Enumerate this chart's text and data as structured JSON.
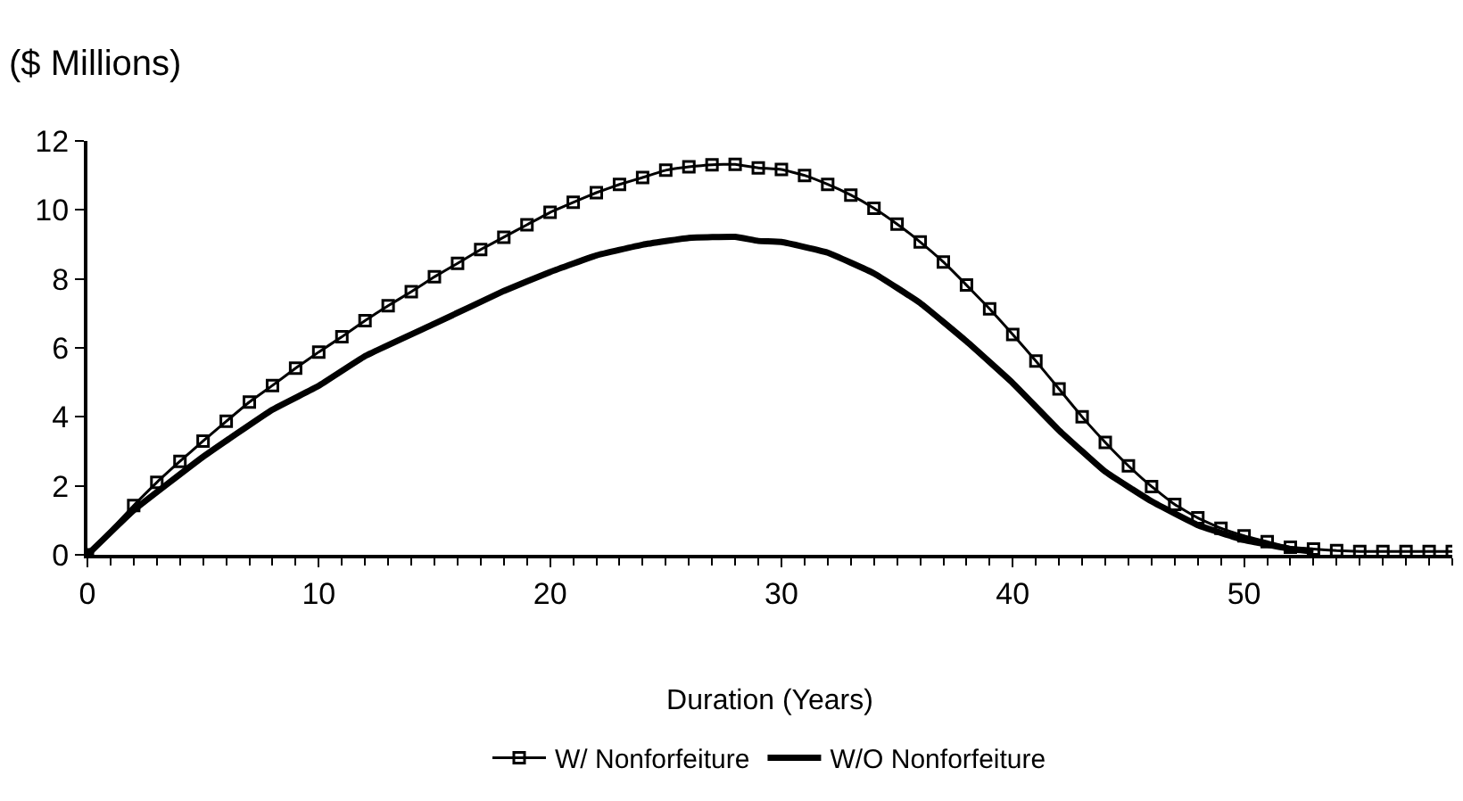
{
  "chart_data": {
    "type": "line",
    "ylabel": "($ Millions)",
    "xlabel": "Duration (Years)",
    "xlim": [
      0,
      59
    ],
    "xticks": [
      0,
      10,
      20,
      30,
      40,
      50
    ],
    "ylim": [
      0,
      12
    ],
    "yticks": [
      0,
      2,
      4,
      6,
      8,
      10,
      12
    ],
    "legend": "bottom",
    "series": [
      {
        "name": "W/ Nonforfeiture",
        "color": "#000000",
        "marker": "square",
        "x": [
          0,
          2,
          3,
          4,
          5,
          6,
          7,
          8,
          9,
          10,
          11,
          12,
          13,
          14,
          15,
          16,
          17,
          18,
          19,
          20,
          21,
          22,
          23,
          24,
          25,
          26,
          27,
          28,
          29,
          30,
          31,
          32,
          33,
          34,
          35,
          36,
          37,
          38,
          39,
          40,
          41,
          42,
          43,
          44,
          45,
          46,
          47,
          48,
          49,
          50,
          51,
          52,
          53,
          54,
          55,
          56,
          57,
          58,
          59
        ],
        "values": [
          0,
          1.43,
          2.1,
          2.71,
          3.3,
          3.87,
          4.43,
          4.91,
          5.41,
          5.88,
          6.32,
          6.79,
          7.22,
          7.63,
          8.06,
          8.45,
          8.85,
          9.21,
          9.57,
          9.93,
          10.22,
          10.5,
          10.74,
          10.94,
          11.15,
          11.25,
          11.31,
          11.32,
          11.22,
          11.17,
          11.0,
          10.74,
          10.43,
          10.05,
          9.59,
          9.07,
          8.49,
          7.82,
          7.13,
          6.39,
          5.62,
          4.81,
          4.0,
          3.26,
          2.58,
          1.98,
          1.46,
          1.07,
          0.77,
          0.55,
          0.38,
          0.22,
          0.17,
          0.12,
          0.1,
          0.1,
          0.1,
          0.1,
          0.1
        ]
      },
      {
        "name": "W/O Nonforfeiture",
        "color": "#000000",
        "marker": "none",
        "x": [
          0,
          2,
          5,
          8,
          10,
          12,
          15,
          18,
          20,
          22,
          24,
          26,
          28,
          29,
          30,
          32,
          34,
          36,
          38,
          40,
          42,
          44,
          46,
          48,
          50,
          52,
          53
        ],
        "values": [
          0,
          1.29,
          2.84,
          4.21,
          4.9,
          5.76,
          6.7,
          7.65,
          8.2,
          8.68,
          8.99,
          9.19,
          9.22,
          9.1,
          9.07,
          8.76,
          8.16,
          7.3,
          6.19,
          4.98,
          3.61,
          2.41,
          1.55,
          0.86,
          0.43,
          0.17,
          0.1
        ]
      }
    ]
  }
}
